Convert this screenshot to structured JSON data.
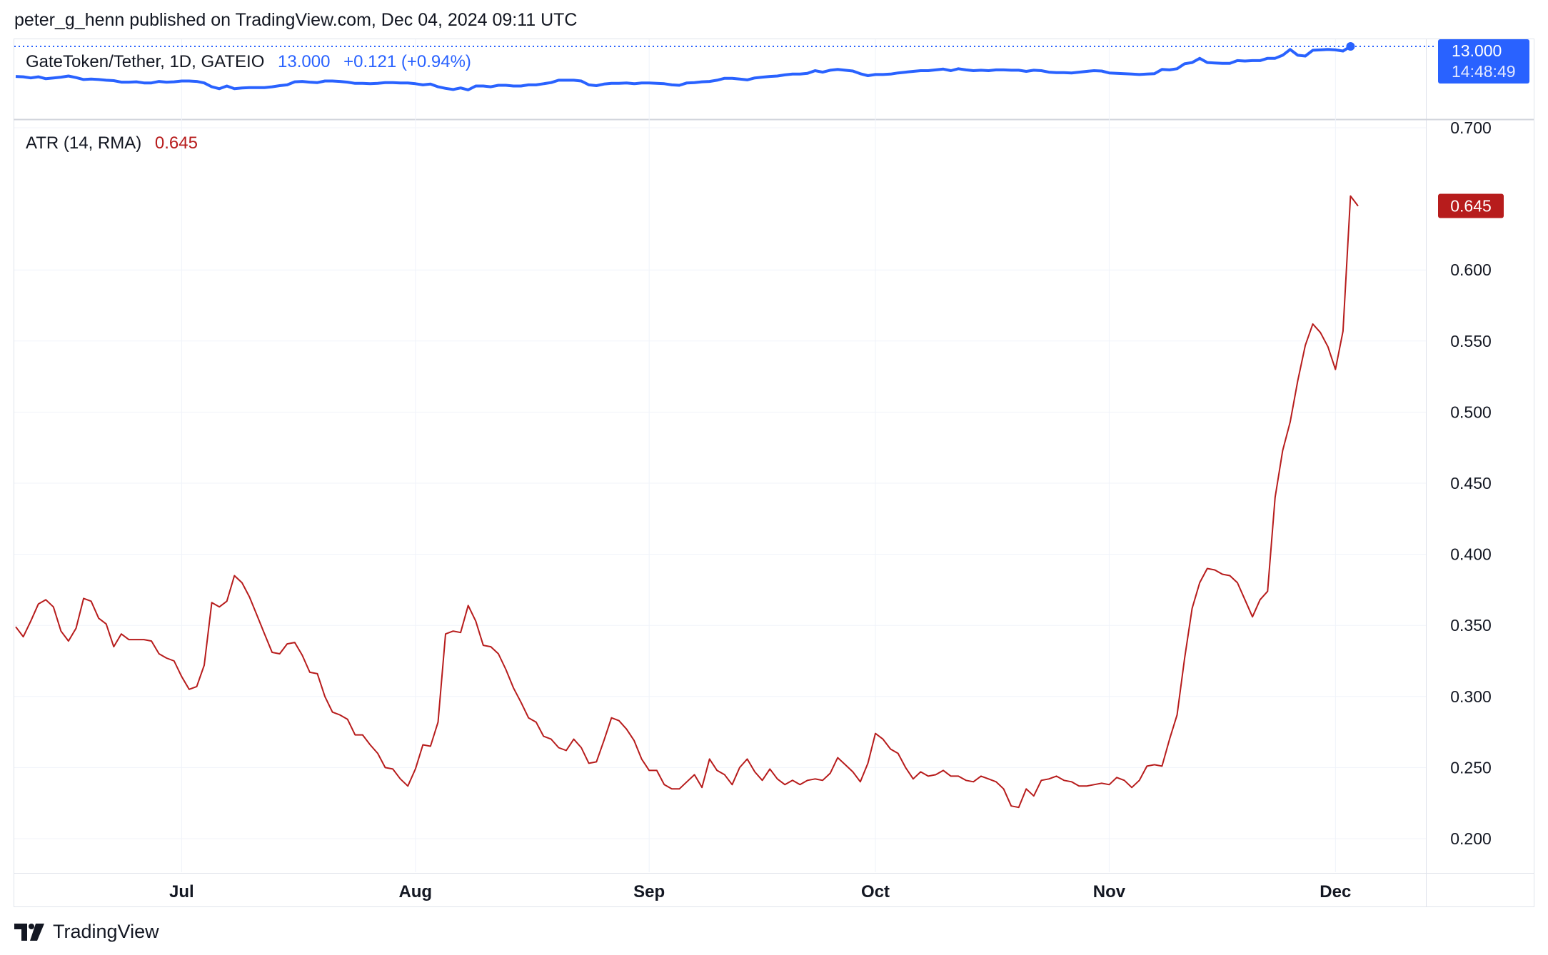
{
  "header": {
    "text": "peter_g_henn published on TradingView.com, Dec 04, 2024 09:11 UTC"
  },
  "footer": {
    "brand": "TradingView"
  },
  "chart_data": [
    {
      "type": "line",
      "pane": "price",
      "symbol_label": "GateToken/Tether, 1D, GATEIO",
      "last_value": "13.000",
      "change": "+0.121 (+0.94%)",
      "price_tag": {
        "value": "13.000",
        "countdown": "14:48:49"
      },
      "color": "#2962ff",
      "series": [
        {
          "values": [
            12.22,
            12.21,
            12.18,
            12.21,
            12.16,
            12.18,
            12.2,
            12.23,
            12.19,
            12.14,
            12.15,
            12.14,
            12.12,
            12.11,
            12.07,
            12.07,
            12.08,
            12.05,
            12.05,
            12.09,
            12.07,
            12.08,
            12.1,
            12.1,
            12.09,
            12.05,
            11.95,
            11.9,
            11.97,
            11.9,
            11.92,
            11.93,
            11.93,
            11.93,
            11.95,
            11.98,
            12.0,
            12.08,
            12.09,
            12.07,
            12.06,
            12.1,
            12.1,
            12.09,
            12.07,
            12.04,
            12.04,
            12.03,
            12.04,
            12.06,
            12.06,
            12.05,
            12.05,
            12.03,
            12.0,
            12.02,
            11.95,
            11.91,
            11.88,
            11.92,
            11.87,
            11.97,
            11.97,
            11.95,
            11.99,
            11.99,
            11.97,
            11.97,
            12.0,
            12.0,
            12.03,
            12.06,
            12.12,
            12.12,
            12.12,
            12.1,
            12.0,
            11.98,
            12.02,
            12.04,
            12.04,
            12.05,
            12.03,
            12.05,
            12.05,
            12.04,
            12.03,
            12.0,
            11.99,
            12.05,
            12.06,
            12.08,
            12.09,
            12.12,
            12.17,
            12.17,
            12.15,
            12.13,
            12.18,
            12.2,
            12.22,
            12.23,
            12.26,
            12.28,
            12.28,
            12.3,
            12.37,
            12.33,
            12.38,
            12.4,
            12.38,
            12.36,
            12.29,
            12.24,
            12.27,
            12.27,
            12.28,
            12.31,
            12.33,
            12.35,
            12.37,
            12.37,
            12.39,
            12.41,
            12.37,
            12.42,
            12.39,
            12.37,
            12.38,
            12.37,
            12.39,
            12.39,
            12.38,
            12.38,
            12.35,
            12.38,
            12.37,
            12.33,
            12.32,
            12.32,
            12.31,
            12.33,
            12.35,
            12.37,
            12.36,
            12.31,
            12.3,
            12.29,
            12.28,
            12.27,
            12.28,
            12.29,
            12.4,
            12.39,
            12.42,
            12.55,
            12.58,
            12.69,
            12.58,
            12.57,
            12.56,
            12.56,
            12.63,
            12.62,
            12.63,
            12.63,
            12.69,
            12.69,
            12.77,
            12.92,
            12.77,
            12.75,
            12.9,
            12.91,
            12.92,
            12.91,
            12.88,
            13.0
          ]
        }
      ]
    },
    {
      "type": "line",
      "pane": "indicator",
      "label": "ATR (14, RMA)",
      "last_value": "0.645",
      "color": "#b71c1c",
      "x_labels": [
        "Jul",
        "Aug",
        "Sep",
        "Oct",
        "Nov",
        "Dec"
      ],
      "y_ticks": [
        "0.700",
        "0.600",
        "0.550",
        "0.500",
        "0.450",
        "0.400",
        "0.350",
        "0.300",
        "0.250",
        "0.200"
      ],
      "ylim": [
        0.18,
        0.71
      ],
      "grid": true,
      "series": [
        {
          "values": [
            0.349,
            0.342,
            0.353,
            0.365,
            0.368,
            0.363,
            0.346,
            0.339,
            0.348,
            0.369,
            0.367,
            0.355,
            0.351,
            0.335,
            0.344,
            0.34,
            0.34,
            0.34,
            0.339,
            0.33,
            0.327,
            0.325,
            0.314,
            0.305,
            0.307,
            0.322,
            0.366,
            0.363,
            0.367,
            0.385,
            0.38,
            0.37,
            0.357,
            0.344,
            0.331,
            0.33,
            0.337,
            0.338,
            0.329,
            0.317,
            0.316,
            0.3,
            0.289,
            0.287,
            0.284,
            0.273,
            0.273,
            0.266,
            0.26,
            0.25,
            0.249,
            0.242,
            0.237,
            0.249,
            0.266,
            0.265,
            0.282,
            0.344,
            0.346,
            0.345,
            0.364,
            0.353,
            0.336,
            0.335,
            0.33,
            0.319,
            0.306,
            0.296,
            0.285,
            0.282,
            0.272,
            0.27,
            0.264,
            0.262,
            0.27,
            0.264,
            0.253,
            0.254,
            0.269,
            0.285,
            0.283,
            0.277,
            0.269,
            0.256,
            0.248,
            0.248,
            0.238,
            0.235,
            0.235,
            0.24,
            0.245,
            0.236,
            0.256,
            0.248,
            0.245,
            0.238,
            0.25,
            0.256,
            0.247,
            0.241,
            0.249,
            0.242,
            0.238,
            0.241,
            0.238,
            0.241,
            0.242,
            0.241,
            0.246,
            0.257,
            0.252,
            0.247,
            0.24,
            0.253,
            0.274,
            0.27,
            0.263,
            0.26,
            0.25,
            0.242,
            0.247,
            0.244,
            0.245,
            0.248,
            0.244,
            0.244,
            0.241,
            0.24,
            0.244,
            0.242,
            0.24,
            0.235,
            0.223,
            0.222,
            0.235,
            0.23,
            0.241,
            0.242,
            0.244,
            0.241,
            0.24,
            0.237,
            0.237,
            0.238,
            0.239,
            0.238,
            0.243,
            0.241,
            0.236,
            0.241,
            0.251,
            0.252,
            0.251,
            0.27,
            0.287,
            0.327,
            0.362,
            0.38,
            0.39,
            0.389,
            0.386,
            0.385,
            0.38,
            0.368,
            0.356,
            0.368,
            0.374,
            0.44,
            0.473,
            0.493,
            0.522,
            0.547,
            0.562,
            0.556,
            0.546,
            0.53,
            0.557,
            0.652,
            0.645
          ]
        }
      ]
    }
  ]
}
